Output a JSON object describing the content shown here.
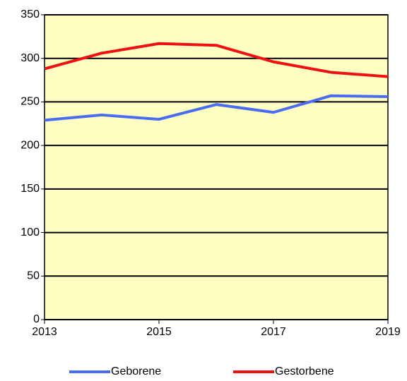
{
  "chart_data": {
    "type": "line",
    "x": [
      2013,
      2014,
      2015,
      2016,
      2017,
      2018,
      2019
    ],
    "series": [
      {
        "name": "Geborene",
        "color": "#4a6cf0",
        "values": [
          229,
          235,
          230,
          247,
          238,
          257,
          256
        ]
      },
      {
        "name": "Gestorbene",
        "color": "#ee1111",
        "values": [
          288,
          306,
          317,
          315,
          296,
          284,
          279
        ]
      }
    ],
    "xlim": [
      2013,
      2019
    ],
    "xticks": [
      2013,
      2015,
      2017,
      2019
    ],
    "ylim": [
      0,
      350
    ],
    "yticks": [
      0,
      50,
      100,
      150,
      200,
      250,
      300,
      350
    ],
    "grid": true,
    "legend": "bottom",
    "background": "#ffffc4"
  }
}
